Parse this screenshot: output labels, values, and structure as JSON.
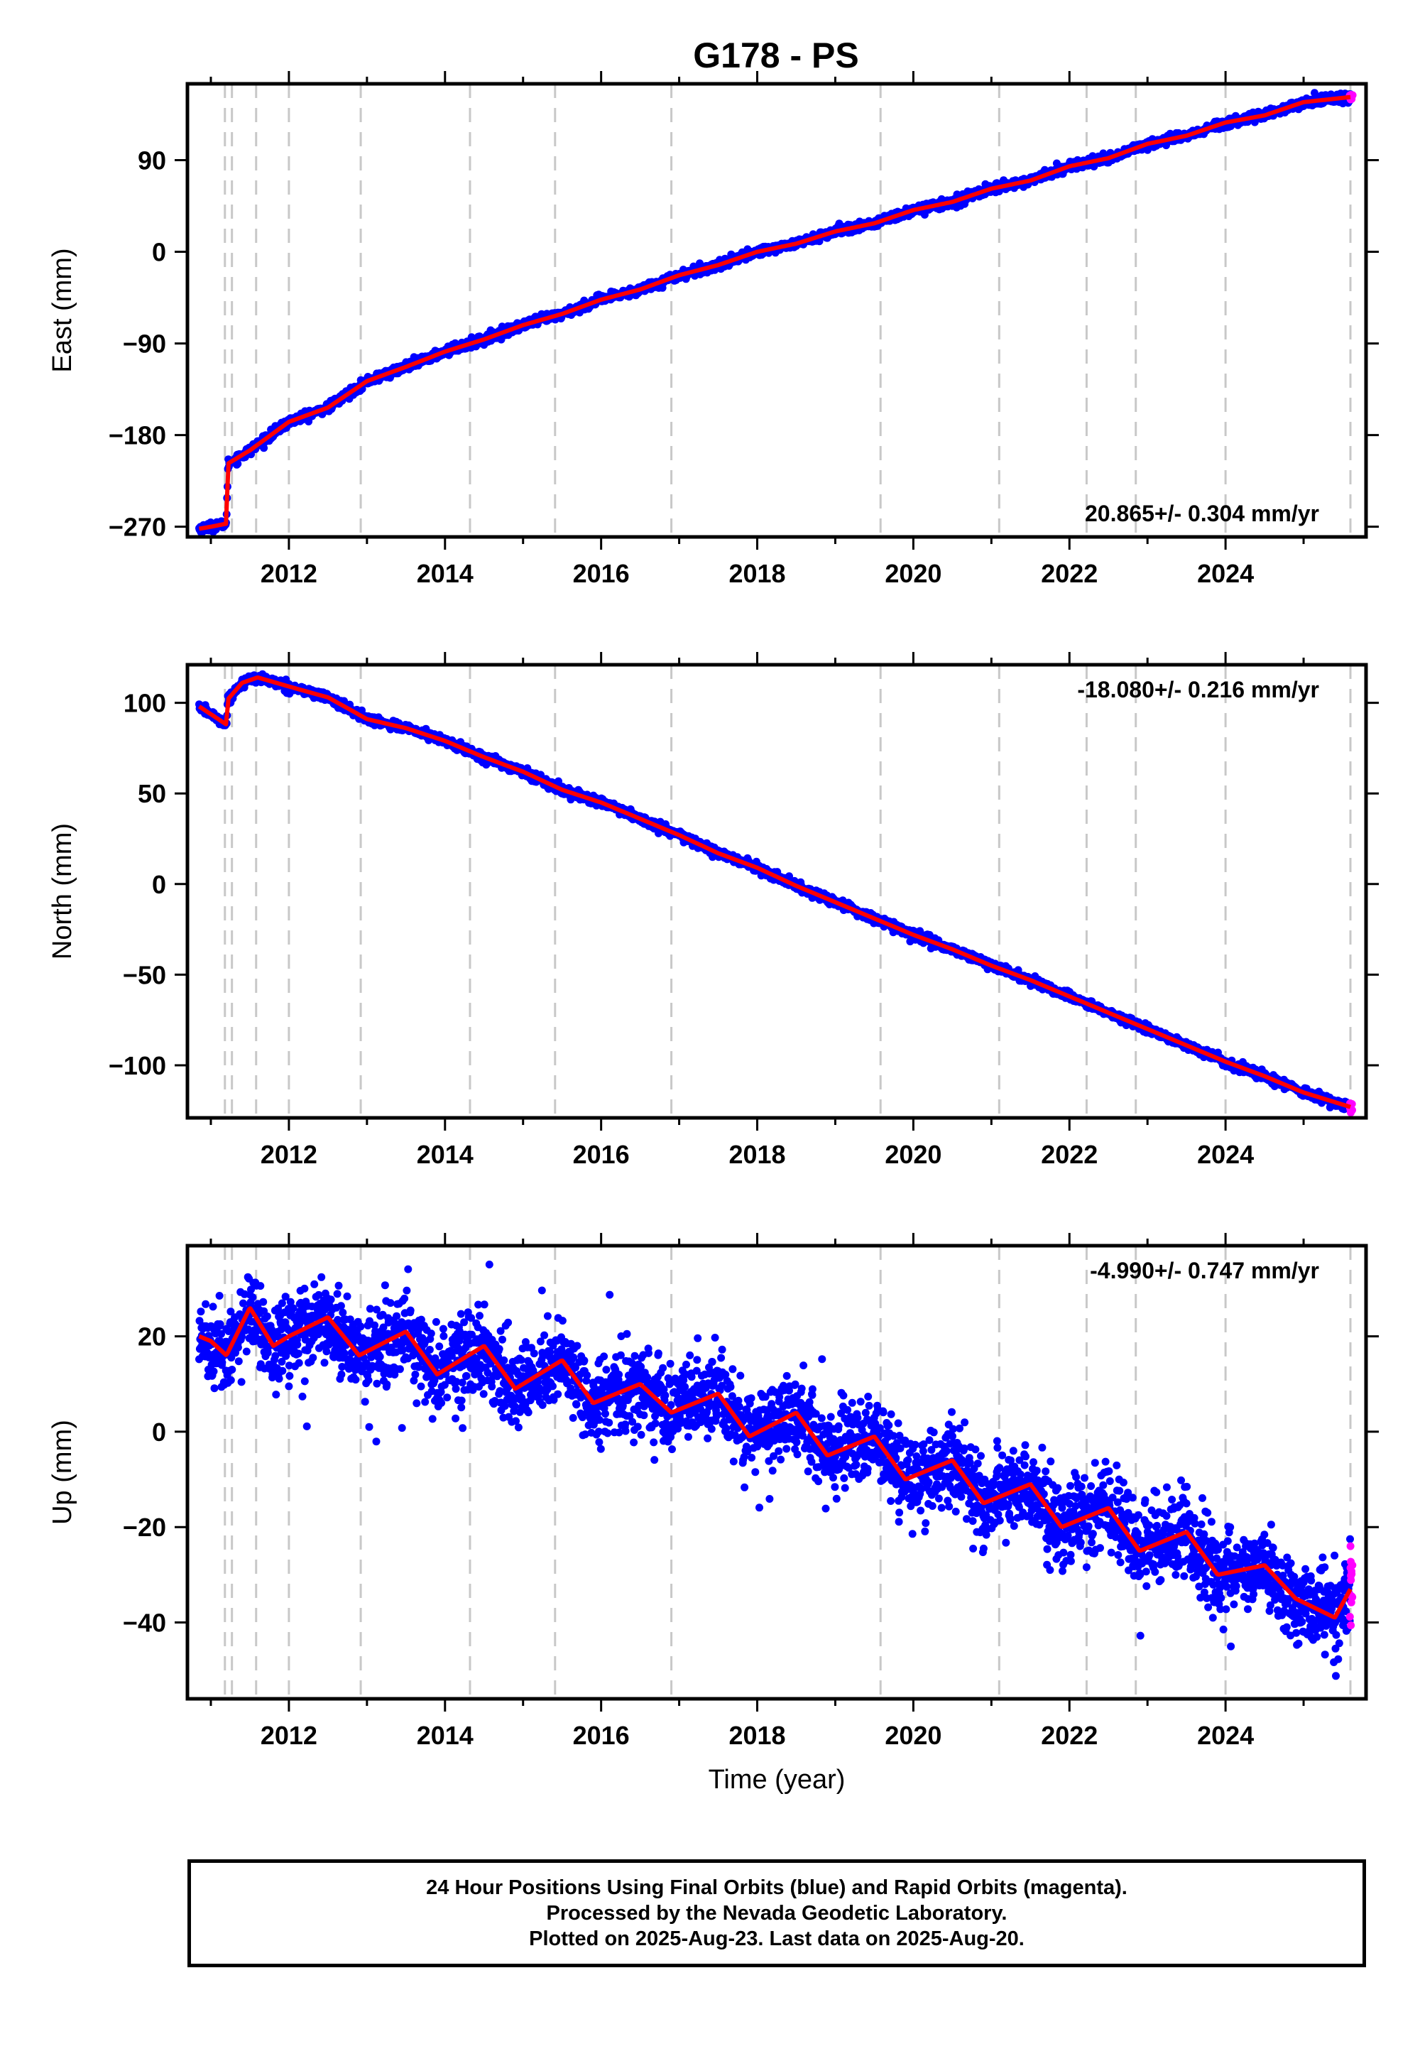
{
  "title": "G178 - PS",
  "colors": {
    "final_orbit": "#0000ff",
    "rapid_orbit": "#ff00ff",
    "model": "#ff0000",
    "gridline": "#c8c8c8"
  },
  "x_axis": {
    "label": "Time (year)",
    "range": [
      2010.7,
      2025.8
    ],
    "ticks": [
      "2012",
      "2014",
      "2016",
      "2018",
      "2020",
      "2022",
      "2024"
    ]
  },
  "footer": {
    "line1": "24 Hour Positions Using Final Orbits (blue) and Rapid Orbits (magenta).",
    "line2": "Processed by the Nevada Geodetic Laboratory.",
    "line3": "Plotted on 2025-Aug-23. Last data on 2025-Aug-20."
  },
  "chart_data": [
    {
      "type": "scatter",
      "component": "east",
      "ylabel": "East (mm)",
      "ylim": [
        -280,
        165
      ],
      "yticks": [
        -270,
        -180,
        -90,
        0,
        90
      ],
      "rate_label": "20.865+/- 0.304 mm/yr",
      "rate_position": "bottom-right",
      "vertical_dashed_lines": [
        2011.18,
        2011.27,
        2011.58,
        2012.0,
        2012.92,
        2014.32,
        2015.41,
        2016.9,
        2019.58,
        2021.1,
        2022.22,
        2022.85,
        2024.0,
        2025.6
      ],
      "series": [
        {
          "x": [
            2010.85,
            2011.0,
            2011.2,
            2011.22,
            2011.5,
            2012.0,
            2012.5,
            2013.0,
            2013.5,
            2014.0,
            2014.5,
            2015.0,
            2015.5,
            2016.0,
            2016.5,
            2017.0,
            2017.5,
            2018.0,
            2018.5,
            2019.0,
            2019.5,
            2020.0,
            2020.5,
            2021.0,
            2021.5,
            2022.0,
            2022.5,
            2023.0,
            2023.5,
            2024.0,
            2024.5,
            2025.0,
            2025.6
          ],
          "y": [
            -272,
            -270,
            -267,
            -208,
            -195,
            -167,
            -153,
            -127,
            -113,
            -98,
            -86,
            -72,
            -61,
            -47,
            -37,
            -23,
            -13,
            0,
            8,
            20,
            28,
            41,
            49,
            62,
            70,
            84,
            92,
            106,
            114,
            127,
            134,
            147,
            152
          ]
        }
      ]
    },
    {
      "type": "scatter",
      "component": "north",
      "ylabel": "North (mm)",
      "ylim": [
        -129,
        121
      ],
      "yticks": [
        -100,
        -50,
        0,
        50,
        100
      ],
      "rate_label": "-18.080+/- 0.216 mm/yr",
      "rate_position": "top-right",
      "vertical_dashed_lines": [
        2011.18,
        2011.27,
        2011.58,
        2012.0,
        2012.92,
        2014.32,
        2015.41,
        2016.9,
        2019.58,
        2021.1,
        2022.22,
        2022.85,
        2024.0,
        2025.6
      ],
      "series": [
        {
          "x": [
            2010.85,
            2011.2,
            2011.22,
            2011.4,
            2011.6,
            2012.0,
            2012.5,
            2013.0,
            2013.5,
            2014.0,
            2014.5,
            2015.0,
            2015.5,
            2016.0,
            2016.5,
            2017.0,
            2017.5,
            2018.0,
            2018.5,
            2019.0,
            2019.5,
            2020.0,
            2020.5,
            2021.0,
            2021.5,
            2022.0,
            2022.5,
            2023.0,
            2023.5,
            2024.0,
            2024.5,
            2025.0,
            2025.6
          ],
          "y": [
            98,
            88,
            102,
            111,
            114,
            109,
            103,
            91,
            86,
            79,
            70,
            62,
            52,
            45,
            36,
            27,
            17,
            9,
            -1,
            -10,
            -19,
            -28,
            -36,
            -45,
            -53,
            -62,
            -71,
            -80,
            -89,
            -98,
            -106,
            -115,
            -123
          ]
        }
      ]
    },
    {
      "type": "scatter",
      "component": "up",
      "ylabel": "Up (mm)",
      "ylim": [
        -56,
        39
      ],
      "yticks": [
        -40,
        -20,
        0,
        20
      ],
      "rate_label": "-4.990+/- 0.747 mm/yr",
      "rate_position": "top-right",
      "vertical_dashed_lines": [
        2011.18,
        2011.27,
        2011.58,
        2012.0,
        2012.92,
        2014.32,
        2015.41,
        2016.9,
        2019.58,
        2021.1,
        2022.22,
        2022.85,
        2024.0,
        2025.6
      ],
      "series": [
        {
          "x": [
            2010.85,
            2011.0,
            2011.2,
            2011.5,
            2011.8,
            2012.0,
            2012.5,
            2012.9,
            2013.5,
            2013.9,
            2014.5,
            2014.9,
            2015.5,
            2015.9,
            2016.5,
            2016.9,
            2017.5,
            2017.9,
            2018.5,
            2018.9,
            2019.5,
            2019.9,
            2020.5,
            2020.9,
            2021.5,
            2021.9,
            2022.5,
            2022.9,
            2023.5,
            2023.9,
            2024.5,
            2024.9,
            2025.4,
            2025.6
          ],
          "y": [
            20,
            19,
            16,
            26,
            18,
            20,
            24,
            16,
            21,
            12,
            18,
            9,
            15,
            6,
            10,
            4,
            8,
            -1,
            4,
            -5,
            -1,
            -10,
            -6,
            -15,
            -11,
            -20,
            -16,
            -25,
            -21,
            -30,
            -28,
            -35,
            -39,
            -33
          ]
        }
      ]
    }
  ]
}
